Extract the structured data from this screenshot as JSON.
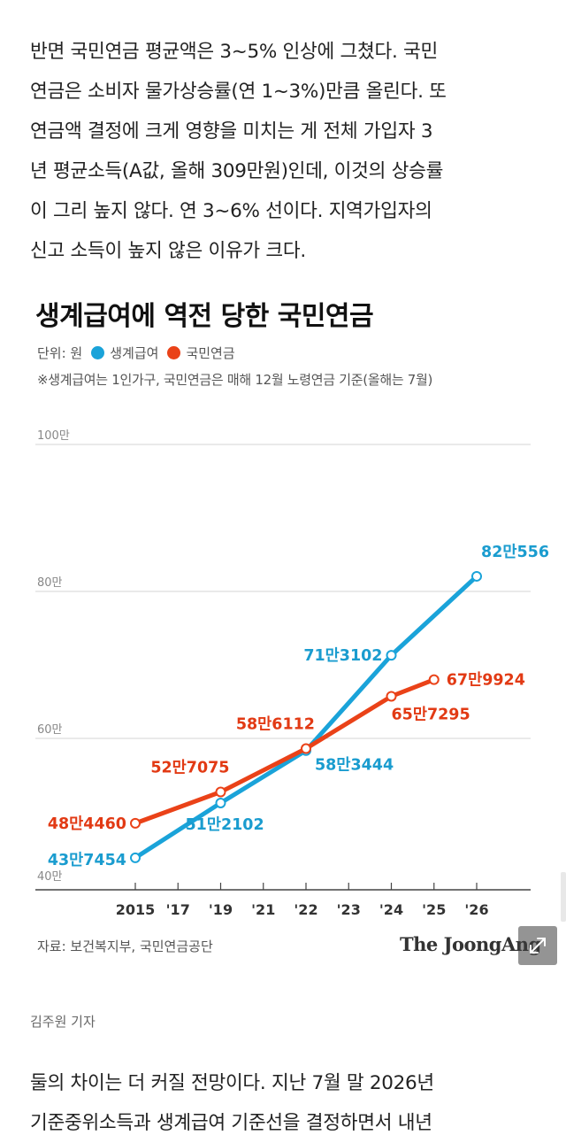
{
  "article": {
    "paragraph_1": "반면 국민연금 평균액은 3~5% 인상에 그쳤다. 국민\n연금은 소비자 물가상승률(연 1~3%)만큼 올린다. 또\n연금액 결정에 크게 영향을 미치는 게 전체 가입자 3\n년 평균소득(A값, 올해 309만원)인데, 이것의 상승률\n이 그리 높지 않다. 연 3~6% 선이다. 지역가입자의\n신고 소득이 높지 않은 이유가 크다.",
    "paragraph_2": "둘의 차이는 더 커질 전망이다. 지난 7월 말 2026년\n기준중위소득과 생계급여 기준선을 결정하면서 내년",
    "reporter": "김주원 기자"
  },
  "chart_data": {
    "type": "line",
    "title": "생계급여에 역전 당한 국민연금",
    "unit_label": "단위: 원",
    "note": "※생계급여는 1인가구, 국민연금은 매해 12월 노령연금 기준(올해는 7월)",
    "source": "자료: 보건복지부, 국민연금공단",
    "brand": "The JoongAng",
    "categories": [
      "2015",
      "'17",
      "'19",
      "'21",
      "'22",
      "'23",
      "'24",
      "'25",
      "'26"
    ],
    "ylim": [
      40,
      100
    ],
    "y_ticks": [
      {
        "value": 40,
        "label": "40만"
      },
      {
        "value": 60,
        "label": "60만"
      },
      {
        "value": 80,
        "label": "80만"
      },
      {
        "value": 100,
        "label": "100만"
      }
    ],
    "grid": true,
    "series": [
      {
        "name": "생계급여",
        "color": "#1aa3d9",
        "label_color": "#1a9ccf",
        "points": [
          {
            "x": "2015",
            "value": 43.7454,
            "label": "43만7454"
          },
          {
            "x": "'19",
            "value": 51.2102,
            "label": "51만2102"
          },
          {
            "x": "'22",
            "value": 58.3444,
            "label": "58만3444"
          },
          {
            "x": "'24",
            "value": 71.3102,
            "label": "71만3102"
          },
          {
            "x": "'26",
            "value": 82.0556,
            "label": "82만556"
          }
        ]
      },
      {
        "name": "국민연금",
        "color": "#ea4218",
        "label_color": "#e23a14",
        "points": [
          {
            "x": "2015",
            "value": 48.446,
            "label": "48만4460"
          },
          {
            "x": "'19",
            "value": 52.7075,
            "label": "52만7075"
          },
          {
            "x": "'22",
            "value": 58.6112,
            "label": "58만6112"
          },
          {
            "x": "'24",
            "value": 65.7295,
            "label": "65만7295"
          },
          {
            "x": "'25",
            "value": 67.9924,
            "label": "67만9924"
          }
        ]
      }
    ]
  }
}
